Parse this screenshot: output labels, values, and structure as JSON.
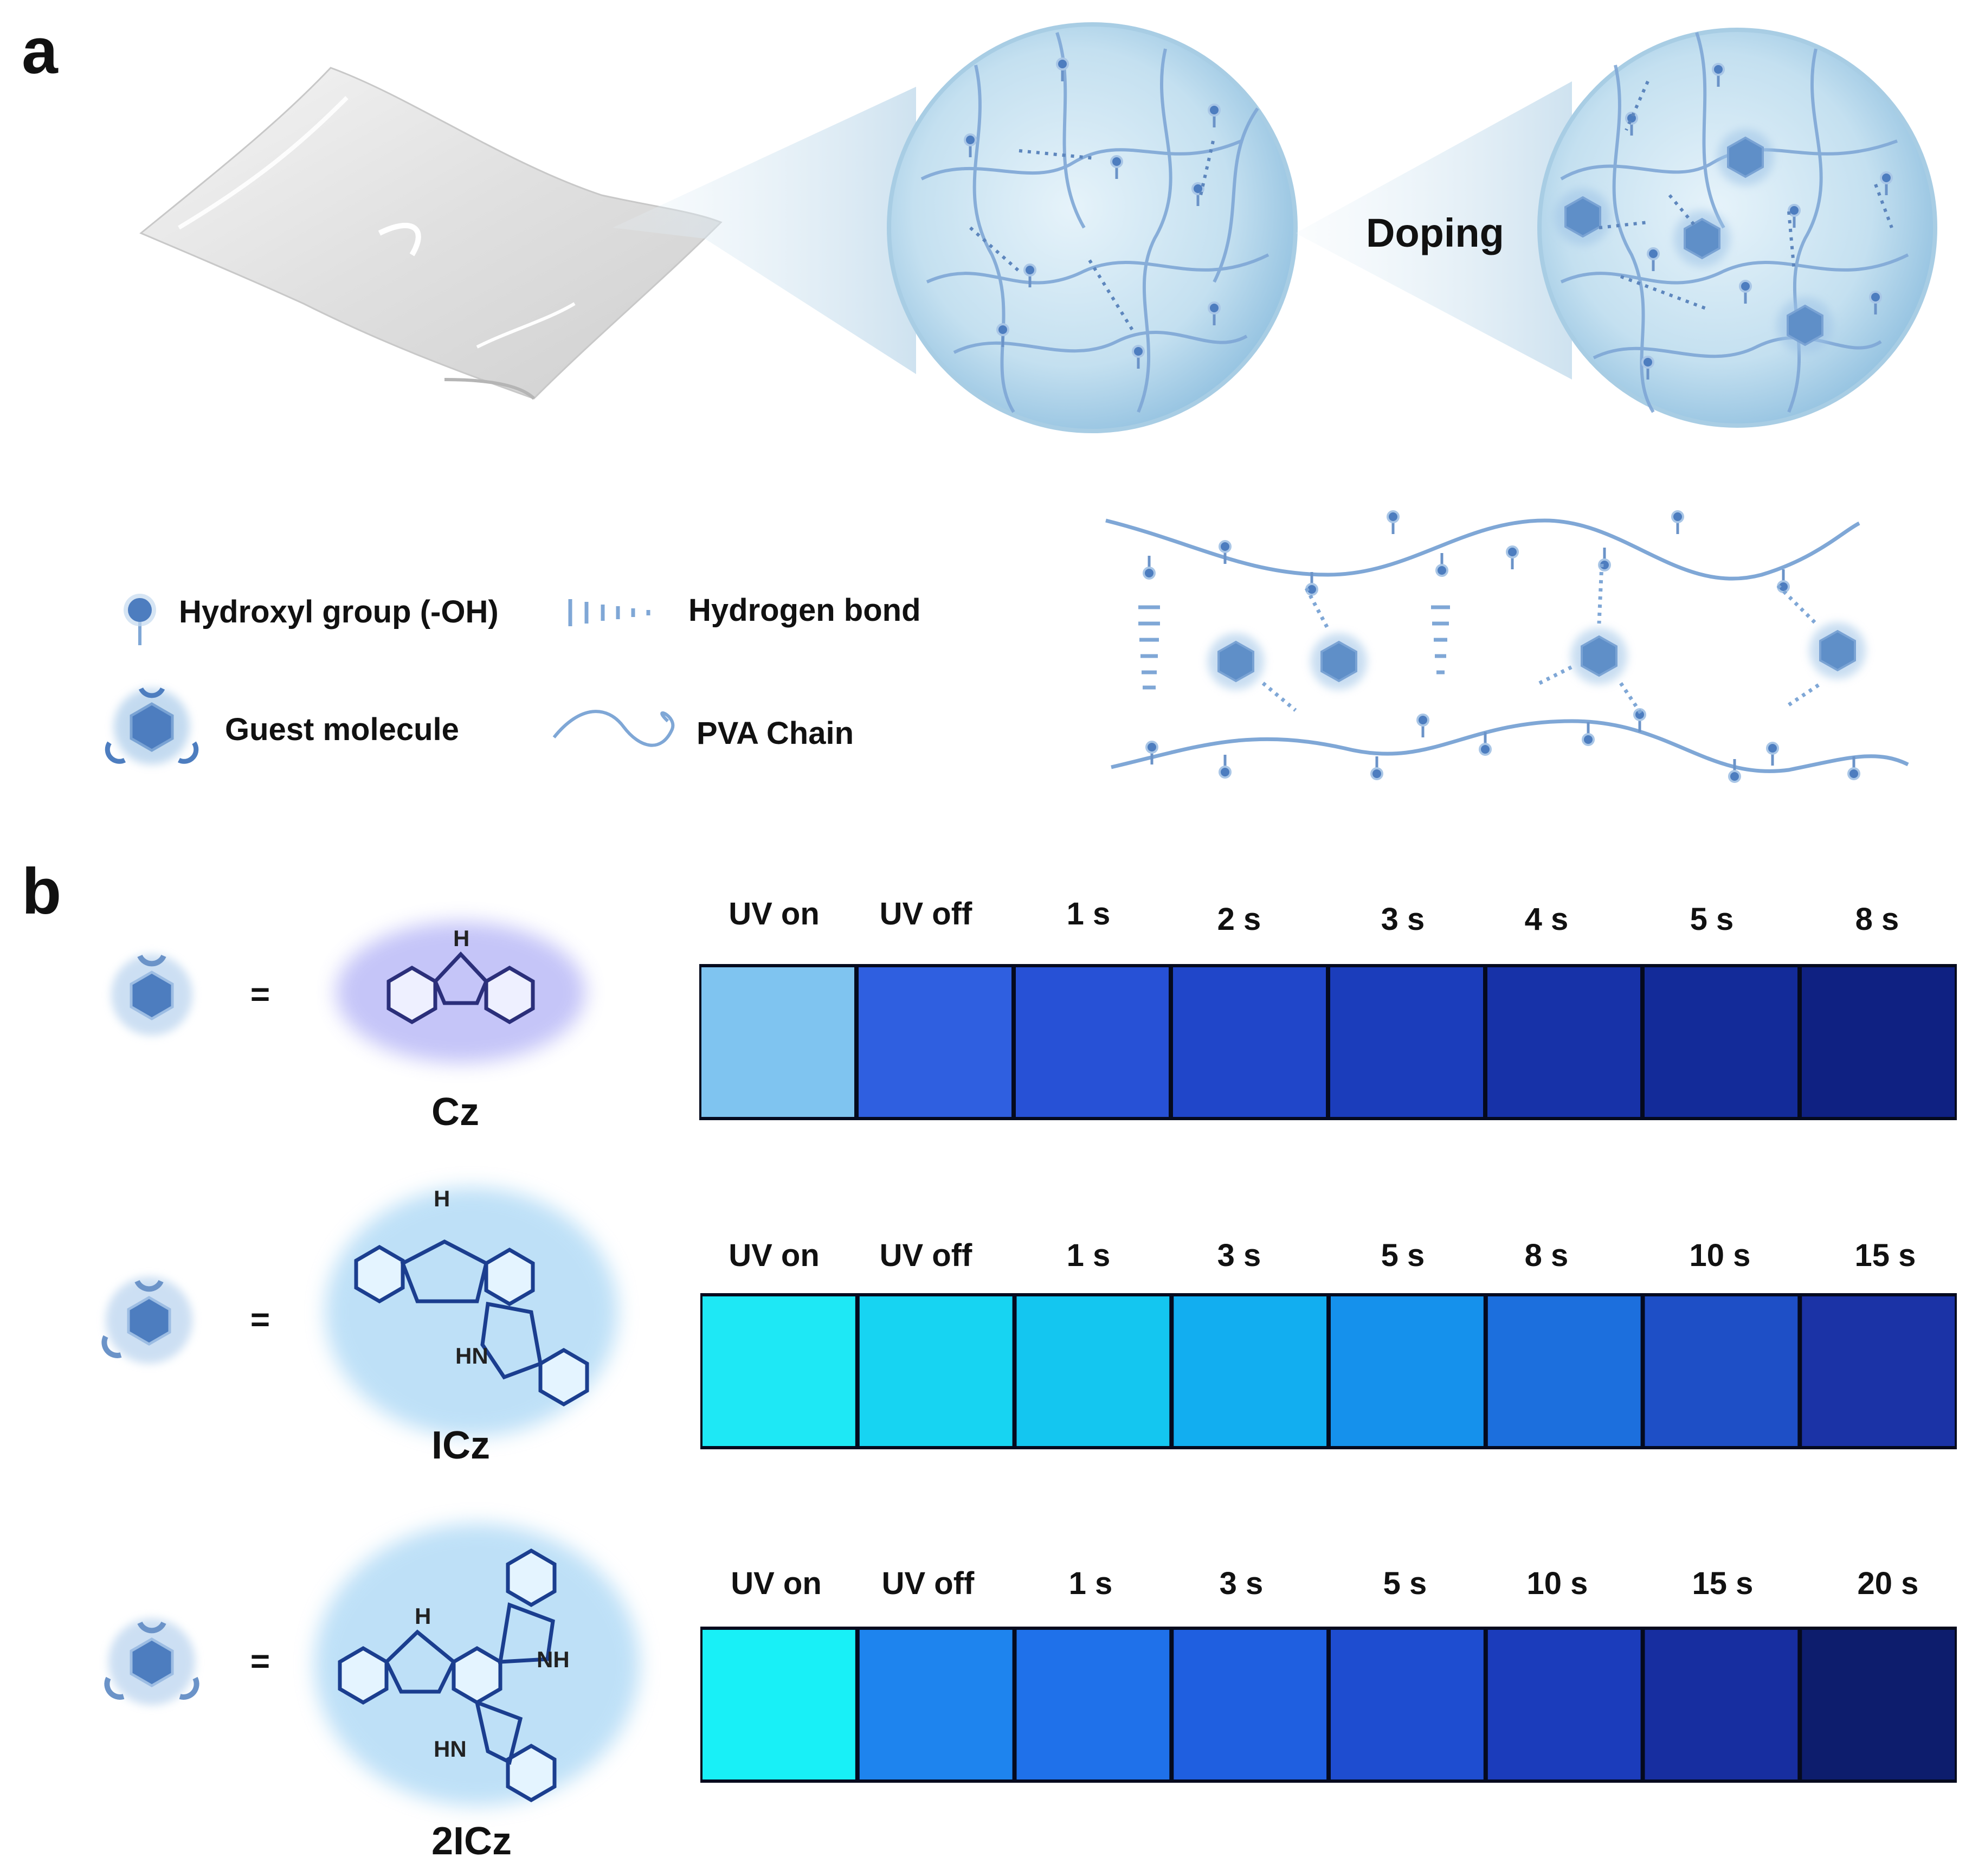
{
  "panels": {
    "a": "a",
    "b": "b"
  },
  "doping_label": "Doping",
  "legend": {
    "hydroxyl": "Hydroxyl group (-OH)",
    "hbond": "Hydrogen bond",
    "guest": "Guest molecule",
    "pva": "PVA Chain"
  },
  "equals": "=",
  "atoms": {
    "h": "H",
    "nh": "NH",
    "hn": "HN"
  },
  "rows": [
    {
      "compound": "Cz",
      "times": [
        "UV on",
        "UV off",
        "1 s",
        "2 s",
        "3 s",
        "4 s",
        "5 s",
        "8 s"
      ],
      "colors": [
        "#7fc4f0",
        "#2f5fe0",
        "#2751d6",
        "#2046c9",
        "#1b3dbb",
        "#1732a8",
        "#132b99",
        "#0f2182"
      ]
    },
    {
      "compound": "ICz",
      "times": [
        "UV on",
        "UV off",
        "1 s",
        "3 s",
        "5 s",
        "8 s",
        "10 s",
        "15 s"
      ],
      "colors": [
        "#1ee8f5",
        "#17d4f2",
        "#14c6f0",
        "#12aef0",
        "#1591ec",
        "#1c6fdd",
        "#1e4fc6",
        "#1b33a6"
      ]
    },
    {
      "compound": "2ICz",
      "times": [
        "UV on",
        "UV off",
        "1 s",
        "3 s",
        "5 s",
        "10 s",
        "15 s",
        "20 s"
      ],
      "colors": [
        "#18f0f7",
        "#1e84ee",
        "#1f71ea",
        "#1f5fe0",
        "#1e4dd0",
        "#1b3cbb",
        "#172ea0",
        "#0d1d6d"
      ]
    }
  ],
  "colors": {
    "accent": "#4d7dbf",
    "sphere": "#c6e1f0",
    "chain": "#7fa7d6",
    "ink": "#111111"
  }
}
